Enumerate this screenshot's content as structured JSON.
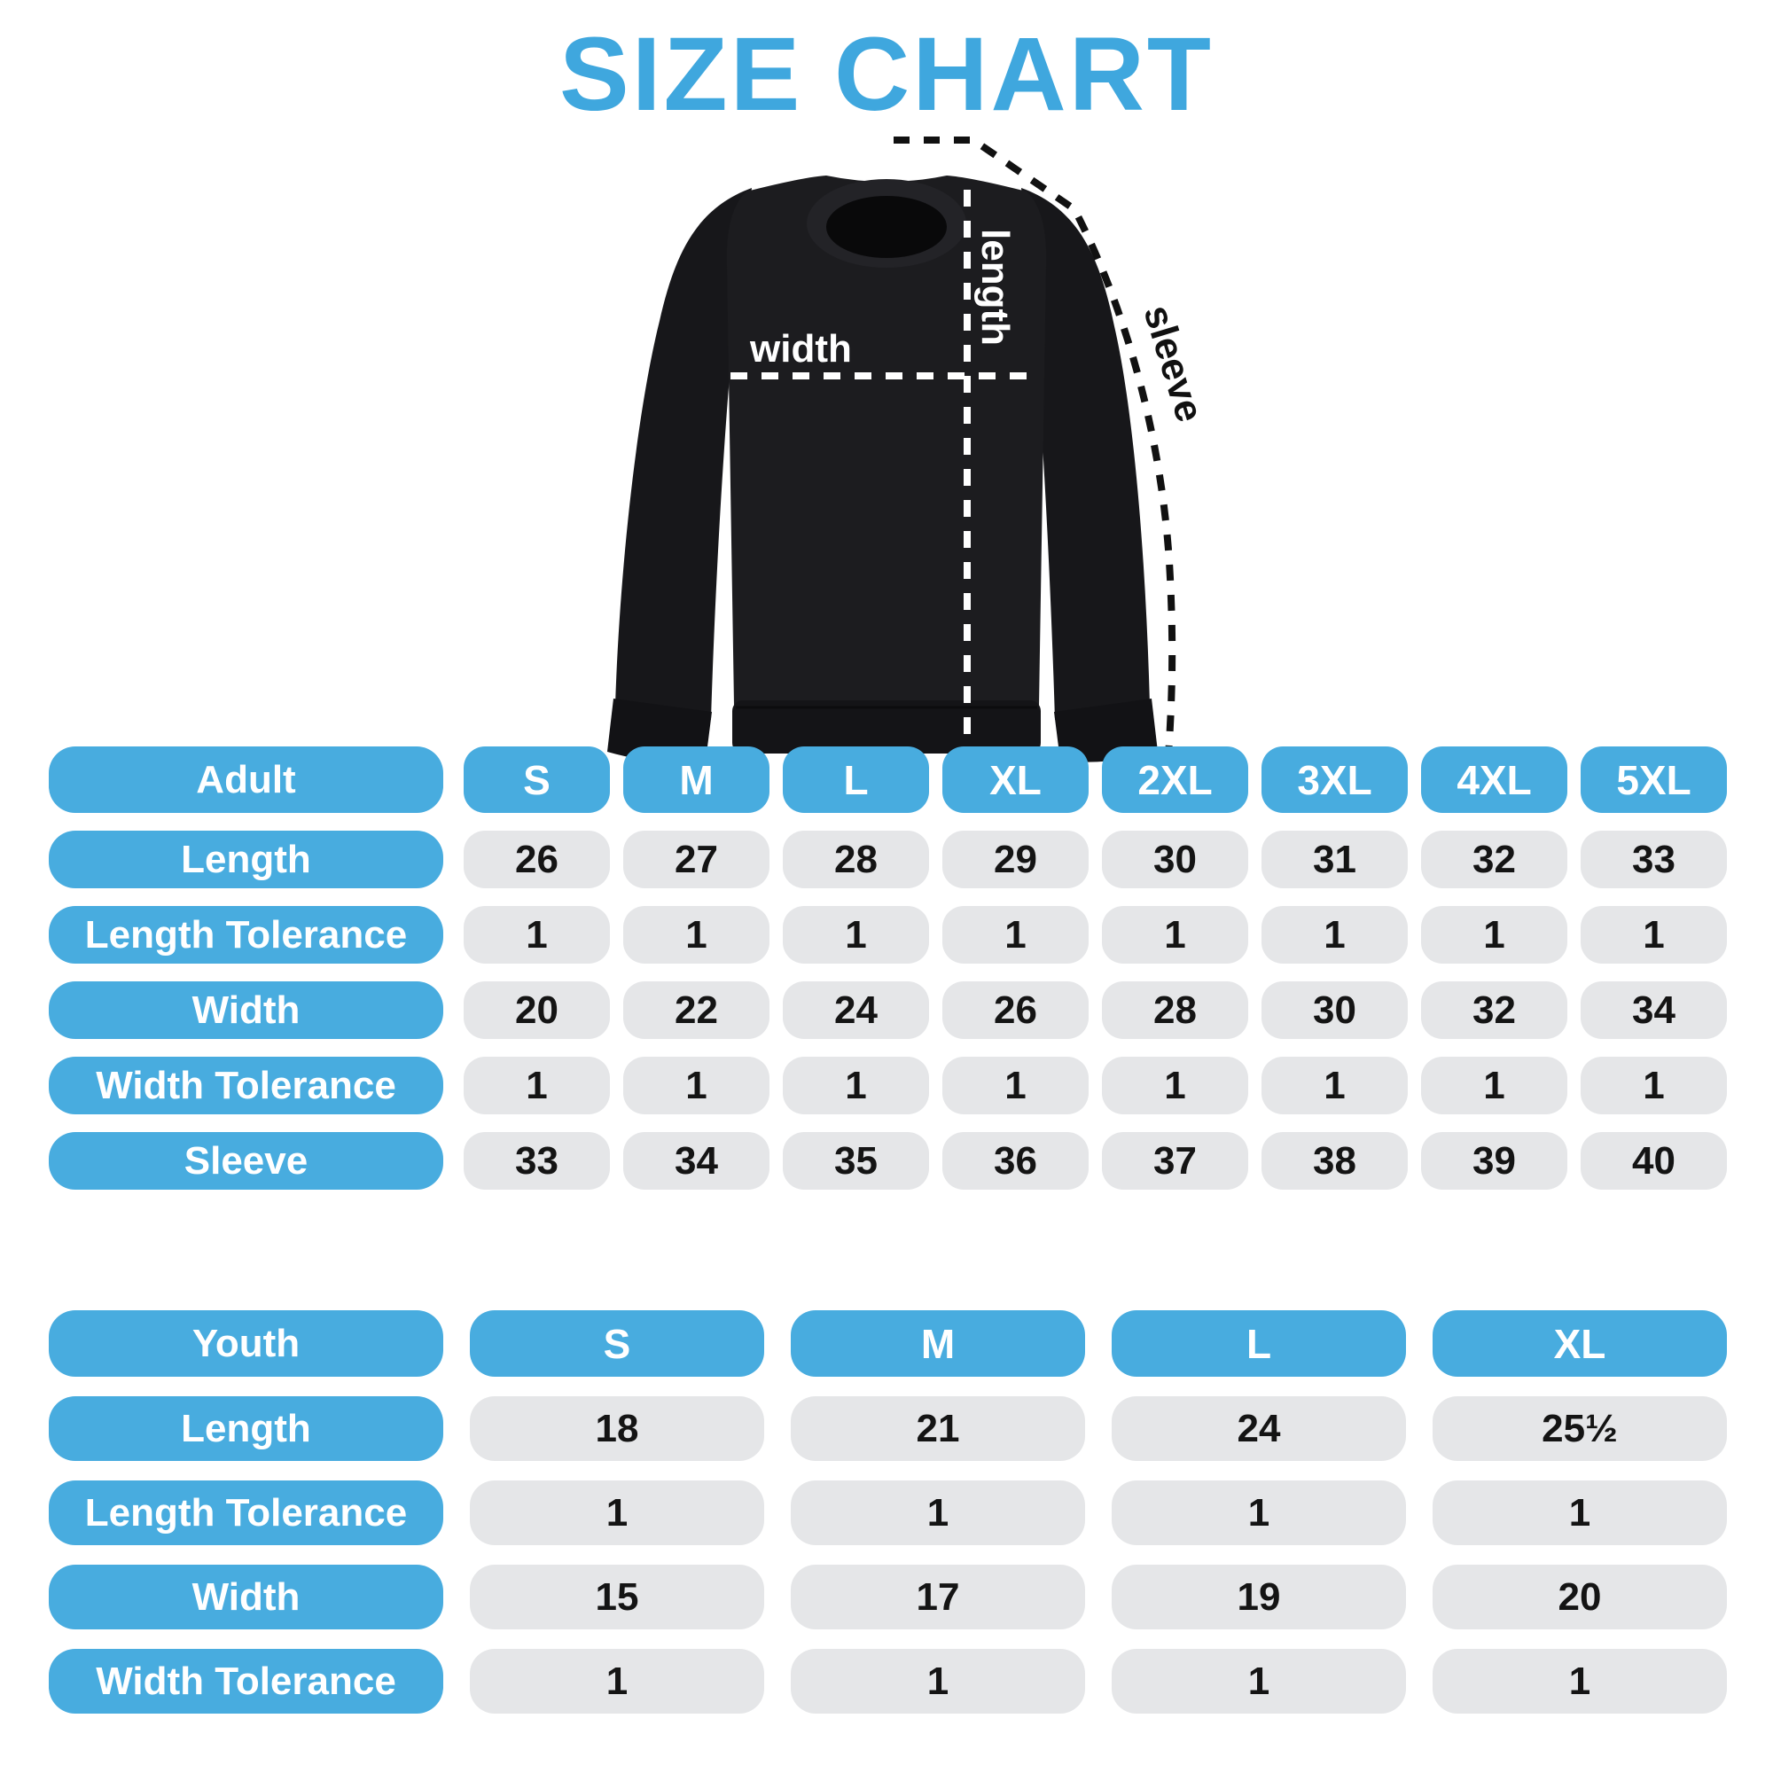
{
  "title": "SIZE CHART",
  "colors": {
    "accent_blue": "#48acdf",
    "title_blue": "#3fa7de",
    "cell_gray": "#e5e6e8",
    "number_text": "#141414",
    "sweatshirt_body": "#1c1c1f",
    "background": "#ffffff"
  },
  "diagram": {
    "garment": "crewneck-sweatshirt",
    "labels": {
      "length": "length",
      "width": "width",
      "sleeve": "sleeve"
    }
  },
  "chart_data": [
    {
      "type": "table",
      "title": "Adult",
      "columns": [
        "S",
        "M",
        "L",
        "XL",
        "2XL",
        "3XL",
        "4XL",
        "5XL"
      ],
      "rows": [
        {
          "label": "Length",
          "values": [
            "26",
            "27",
            "28",
            "29",
            "30",
            "31",
            "32",
            "33"
          ]
        },
        {
          "label": "Length Tolerance",
          "values": [
            "1",
            "1",
            "1",
            "1",
            "1",
            "1",
            "1",
            "1"
          ]
        },
        {
          "label": "Width",
          "values": [
            "20",
            "22",
            "24",
            "26",
            "28",
            "30",
            "32",
            "34"
          ]
        },
        {
          "label": "Width Tolerance",
          "values": [
            "1",
            "1",
            "1",
            "1",
            "1",
            "1",
            "1",
            "1"
          ]
        },
        {
          "label": "Sleeve",
          "values": [
            "33",
            "34",
            "35",
            "36",
            "37",
            "38",
            "39",
            "40"
          ]
        }
      ]
    },
    {
      "type": "table",
      "title": "Youth",
      "columns": [
        "S",
        "M",
        "L",
        "XL"
      ],
      "rows": [
        {
          "label": "Length",
          "values": [
            "18",
            "21",
            "24",
            "25½"
          ]
        },
        {
          "label": "Length Tolerance",
          "values": [
            "1",
            "1",
            "1",
            "1"
          ]
        },
        {
          "label": "Width",
          "values": [
            "15",
            "17",
            "19",
            "20"
          ]
        },
        {
          "label": "Width Tolerance",
          "values": [
            "1",
            "1",
            "1",
            "1"
          ]
        }
      ]
    }
  ]
}
